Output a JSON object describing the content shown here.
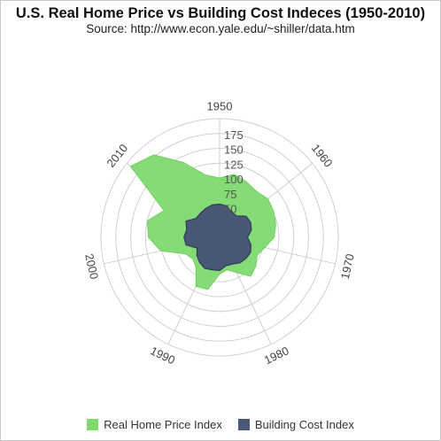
{
  "chart_data": {
    "type": "radar-area",
    "title": "U.S. Real Home Price vs Building Cost Indeces (1950-2010)",
    "subtitle": "Source: http://www.econ.yale.edu/~shiller/data.htm",
    "angular_labels": [
      "1950",
      "1960",
      "1970",
      "1980",
      "1990",
      "2000",
      "2010"
    ],
    "radial_ticks": [
      50,
      75,
      100,
      125,
      150,
      175
    ],
    "radial_range": [
      0,
      200
    ],
    "series": [
      {
        "name": "Real Home Price Index",
        "color": "#7ed96e",
        "year_start": 1950,
        "year_step": 2.5,
        "values": [
          100,
          109,
          104,
          99,
          104,
          101,
          97,
          92,
          78,
          70,
          78,
          84,
          66,
          56,
          62,
          90,
          92,
          64,
          58,
          64,
          102,
          120,
          125,
          104,
          192,
          178,
          140,
          108,
          100,
          93
        ]
      },
      {
        "name": "Building Cost Index",
        "color": "#4a5878",
        "year_start": 1950,
        "year_step": 2.5,
        "values": [
          56,
          54,
          47,
          46,
          57,
          58,
          55,
          47,
          54,
          58,
          57,
          55,
          50,
          49,
          56,
          56,
          58,
          54,
          49,
          42,
          58,
          60,
          57,
          63,
          51,
          52,
          54,
          56,
          56,
          54
        ]
      }
    ],
    "legend": {
      "position": "bottom",
      "items": [
        "Real Home Price Index",
        "Building Cost Index"
      ]
    },
    "grid": true
  }
}
